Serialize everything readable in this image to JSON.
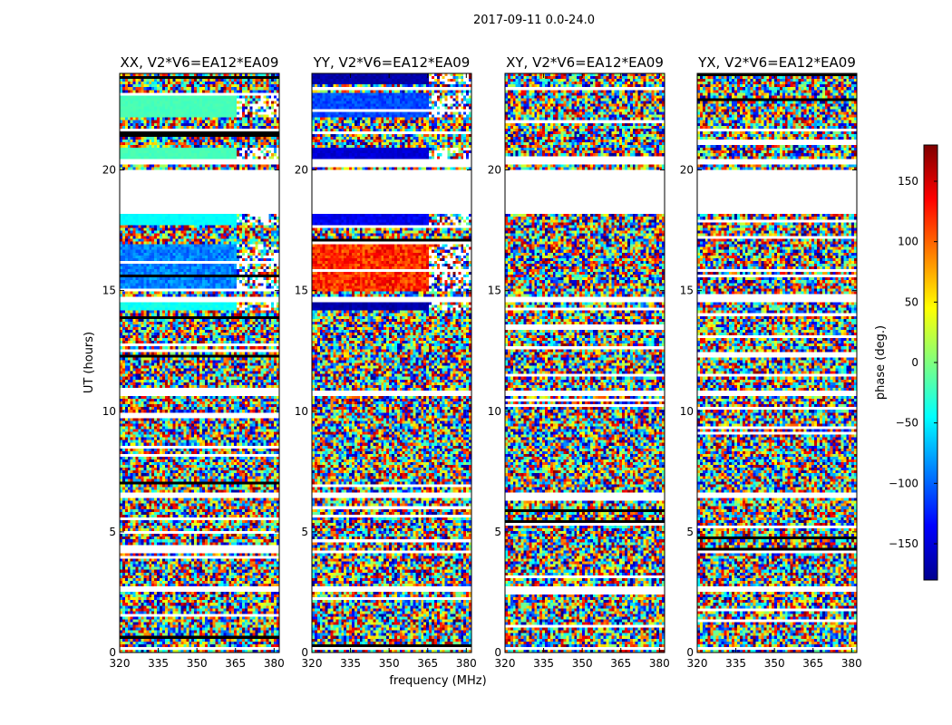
{
  "suptitle": "2017-09-11 0.0-24.0",
  "colorbar": {
    "label": "phase (deg.)",
    "ticks": [
      "150",
      "100",
      "50",
      "0",
      "−50",
      "−100",
      "−150"
    ],
    "tick_values": [
      150,
      100,
      50,
      0,
      -50,
      -100,
      -150
    ],
    "vmin": -180,
    "vmax": 180
  },
  "chart_data": {
    "type": "heatmap",
    "colormap": "jet",
    "xlabel": "frequency (MHz)",
    "ylabel": "UT (hours)",
    "xlim": [
      320,
      382
    ],
    "ylim": [
      0,
      24
    ],
    "x_ticks": [
      "320",
      "335",
      "350",
      "365",
      "380"
    ],
    "x_tick_values": [
      320,
      335,
      350,
      365,
      380
    ],
    "y_ticks": [
      "0",
      "5",
      "10",
      "15",
      "20"
    ],
    "y_tick_values": [
      0,
      5,
      10,
      15,
      20
    ],
    "flagged_hours": [
      [
        18.2,
        20.0
      ],
      [
        20.25,
        20.5
      ],
      [
        10.6,
        10.8
      ],
      [
        14.55,
        14.7
      ],
      [
        6.45,
        6.6
      ],
      [
        2.55,
        2.7
      ],
      [
        0.15,
        0.2
      ]
    ],
    "panels": [
      {
        "title": "XX, V2*V6=EA12*EA09",
        "segments": [
          {
            "hours": [
              22.2,
              23.2
            ],
            "mean_phase": -20,
            "spread": 4
          },
          {
            "hours": [
              20.5,
              20.9
            ],
            "mean_phase": -20,
            "spread": 4
          },
          {
            "hours": [
              17.7,
              18.2
            ],
            "mean_phase": -45,
            "spread": 4
          },
          {
            "hours": [
              15.0,
              16.9
            ],
            "mean_phase": -90,
            "spread": 20
          },
          {
            "hours": [
              14.2,
              14.5
            ],
            "mean_phase": -40,
            "spread": 8
          }
        ]
      },
      {
        "title": "YY, V2*V6=EA12*EA09",
        "segments": [
          {
            "hours": [
              23.5,
              24.0
            ],
            "mean_phase": -165,
            "spread": 8
          },
          {
            "hours": [
              22.2,
              23.2
            ],
            "mean_phase": -110,
            "spread": 15
          },
          {
            "hours": [
              20.5,
              20.9
            ],
            "mean_phase": -150,
            "spread": 8
          },
          {
            "hours": [
              17.7,
              18.2
            ],
            "mean_phase": -140,
            "spread": 12
          },
          {
            "hours": [
              15.0,
              16.9
            ],
            "mean_phase": 120,
            "spread": 30
          },
          {
            "hours": [
              14.2,
              14.5
            ],
            "mean_phase": -165,
            "spread": 8
          }
        ]
      },
      {
        "title": "XY, V2*V6=EA12*EA09",
        "segments": []
      },
      {
        "title": "YX, V2*V6=EA12*EA09",
        "segments": []
      }
    ]
  }
}
